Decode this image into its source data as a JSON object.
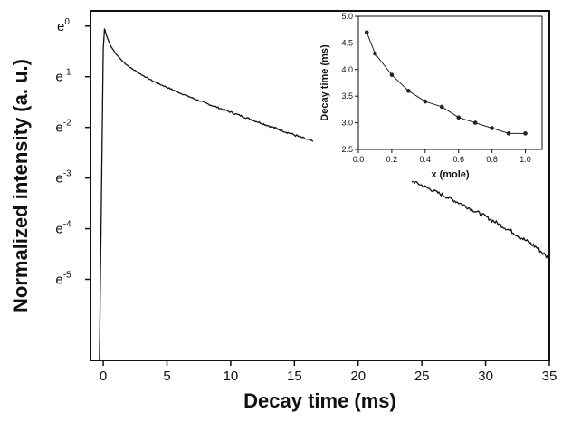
{
  "chart_data": [
    {
      "type": "line",
      "title": "",
      "xlabel": "Decay time (ms)",
      "ylabel": "Normalized intensity (a. u.)",
      "xlim": [
        -1,
        35
      ],
      "ylim": [
        -6.6,
        0.3
      ],
      "y_scale": "ln",
      "grid": false,
      "x_ticks": [
        0,
        5,
        10,
        15,
        20,
        25,
        30,
        35
      ],
      "x_tick_labels": [
        "0",
        "5",
        "10",
        "15",
        "20",
        "25",
        "30",
        "35"
      ],
      "y_ticks": [
        0,
        -1,
        -2,
        -3,
        -4,
        -5
      ],
      "y_tick_labels": [
        {
          "base": "e",
          "exp": "0"
        },
        {
          "base": "e",
          "exp": "-1"
        },
        {
          "base": "e",
          "exp": "-2"
        },
        {
          "base": "e",
          "exp": "-3"
        },
        {
          "base": "e",
          "exp": "-4"
        },
        {
          "base": "e",
          "exp": "-5"
        }
      ],
      "series": [
        {
          "color": "#111111",
          "x": [
            -0.3,
            0,
            0.1,
            0.3,
            0.6,
            1,
            1.5,
            2,
            3,
            4,
            5,
            6,
            7,
            8,
            9,
            10,
            12,
            14,
            16,
            18,
            20,
            22,
            24,
            26,
            28,
            30,
            32,
            34,
            35
          ],
          "y": [
            -6.6,
            -0.45,
            -0.05,
            -0.22,
            -0.4,
            -0.55,
            -0.69,
            -0.8,
            -0.96,
            -1.1,
            -1.21,
            -1.32,
            -1.42,
            -1.52,
            -1.61,
            -1.7,
            -1.88,
            -2.06,
            -2.24,
            -2.42,
            -2.6,
            -2.81,
            -3.03,
            -3.26,
            -3.5,
            -3.76,
            -4.05,
            -4.37,
            -4.6
          ]
        }
      ]
    },
    {
      "type": "line",
      "title": "",
      "xlabel": "x (mole)",
      "ylabel": "Decay time (ms)",
      "xlim": [
        0,
        1.1
      ],
      "ylim": [
        2.5,
        5.0
      ],
      "grid": false,
      "x_ticks": [
        0.0,
        0.2,
        0.4,
        0.6,
        0.8,
        1.0
      ],
      "x_tick_labels": [
        "0.0",
        "0.2",
        "0.4",
        "0.6",
        "0.8",
        "1.0"
      ],
      "y_ticks": [
        2.5,
        3.0,
        3.5,
        4.0,
        4.5,
        5.0
      ],
      "y_tick_labels": [
        "2.5",
        "3.0",
        "3.5",
        "4.0",
        "4.5",
        "5.0"
      ],
      "series": [
        {
          "color": "#222222",
          "marker": "circle",
          "x": [
            0.05,
            0.1,
            0.2,
            0.3,
            0.4,
            0.5,
            0.6,
            0.7,
            0.8,
            0.9,
            1.0
          ],
          "y": [
            4.7,
            4.3,
            3.9,
            3.6,
            3.4,
            3.3,
            3.1,
            3.0,
            2.9,
            2.8,
            2.8
          ]
        }
      ]
    }
  ]
}
